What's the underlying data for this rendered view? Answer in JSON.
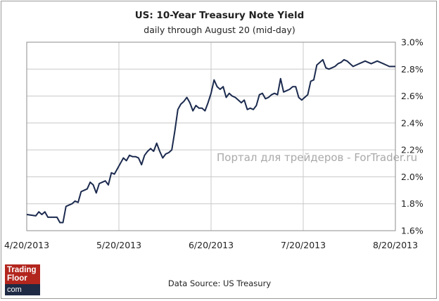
{
  "chart_data": {
    "type": "line",
    "title": "US: 10-Year Treasury Note Yield",
    "subtitle": "daily through August 20 (mid-day)",
    "xlabel": "",
    "ylabel": "",
    "x_ticks": [
      "4/20/2013",
      "5/20/2013",
      "6/20/2013",
      "7/20/2013",
      "8/20/2013"
    ],
    "y_ticks": [
      "1.6%",
      "1.8%",
      "2.0%",
      "2.2%",
      "2.4%",
      "2.6%",
      "2.8%",
      "3.0%"
    ],
    "ylim": [
      1.6,
      3.0
    ],
    "x_range_days": [
      0,
      122
    ],
    "grid": true,
    "series": [
      {
        "name": "10-Year Treasury Note Yield",
        "color": "#1b2a4e",
        "x": [
          0,
          3,
          4,
          5,
          6,
          7,
          8,
          9,
          10,
          11,
          12,
          13,
          14,
          15,
          16,
          17,
          18,
          19,
          20,
          21,
          22,
          23,
          24,
          25,
          26,
          27,
          28,
          29,
          30,
          31,
          32,
          33,
          34,
          35,
          36,
          37,
          38,
          39,
          40,
          41,
          42,
          43,
          44,
          45,
          46,
          47,
          48,
          49,
          50,
          51,
          52,
          53,
          54,
          55,
          56,
          57,
          58,
          59,
          60,
          61,
          62,
          63,
          64,
          65,
          66,
          67,
          68,
          69,
          70,
          71,
          72,
          73,
          74,
          75,
          76,
          77,
          78,
          79,
          80,
          81,
          82,
          83,
          84,
          85,
          86,
          87,
          88,
          89,
          90,
          91,
          92,
          93,
          94,
          95,
          96,
          97,
          98,
          99,
          100,
          101,
          102,
          103,
          104,
          105,
          106,
          107,
          108,
          109,
          110,
          111,
          112,
          113,
          114,
          115,
          116,
          117,
          118,
          119,
          120,
          121,
          122
        ],
        "values": [
          1.72,
          1.71,
          1.74,
          1.72,
          1.74,
          1.7,
          1.7,
          1.7,
          1.7,
          1.66,
          1.66,
          1.78,
          1.79,
          1.8,
          1.82,
          1.81,
          1.89,
          1.9,
          1.91,
          1.96,
          1.94,
          1.88,
          1.95,
          1.96,
          1.97,
          1.94,
          2.03,
          2.02,
          2.06,
          2.1,
          2.14,
          2.12,
          2.16,
          2.15,
          2.15,
          2.14,
          2.09,
          2.16,
          2.19,
          2.21,
          2.19,
          2.25,
          2.19,
          2.14,
          2.17,
          2.18,
          2.2,
          2.34,
          2.5,
          2.54,
          2.56,
          2.59,
          2.55,
          2.49,
          2.53,
          2.51,
          2.51,
          2.49,
          2.55,
          2.62,
          2.72,
          2.67,
          2.65,
          2.67,
          2.59,
          2.62,
          2.6,
          2.59,
          2.57,
          2.55,
          2.57,
          2.5,
          2.51,
          2.5,
          2.53,
          2.61,
          2.62,
          2.58,
          2.59,
          2.61,
          2.62,
          2.61,
          2.73,
          2.63,
          2.64,
          2.65,
          2.67,
          2.67,
          2.59,
          2.57,
          2.59,
          2.61,
          2.71,
          2.72,
          2.83,
          2.85,
          2.87,
          2.81,
          2.8,
          2.81,
          2.82,
          2.84,
          2.85,
          2.87,
          2.86,
          2.84,
          2.82,
          2.83,
          2.84,
          2.85,
          2.86,
          2.85,
          2.84,
          2.85,
          2.86,
          2.85,
          2.84,
          2.83,
          2.82,
          2.82,
          2.82
        ]
      }
    ],
    "source": "Data Source: US Treasury"
  },
  "watermark": "Портал для трейдеров - ForTrader.ru",
  "logo": {
    "line1": "Trading",
    "line2": "Floor",
    "line3": "com"
  },
  "colors": {
    "line": "#1b2a4e",
    "grid": "#c8c8c8",
    "axis": "#8c8c8c"
  }
}
